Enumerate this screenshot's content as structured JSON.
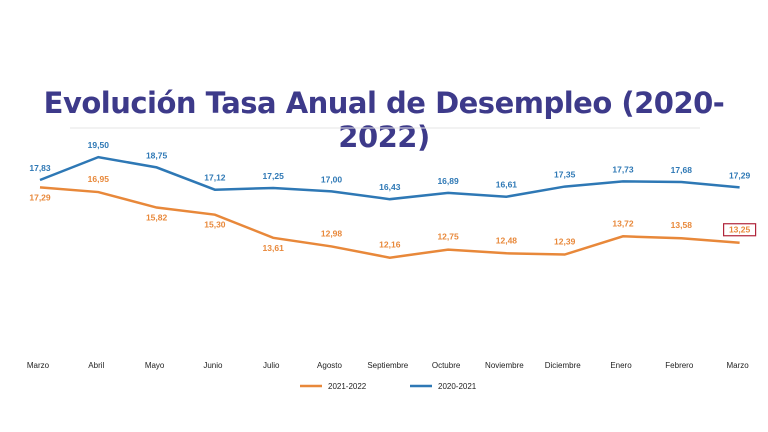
{
  "chart_data": {
    "type": "line",
    "title": "Evolución Tasa Anual de Desempleo (2020-2022)",
    "categories": [
      "Marzo",
      "Abril",
      "Mayo",
      "Junio",
      "Julio",
      "Agosto",
      "Septiembre",
      "Octubre",
      "Noviembre",
      "Diciembre",
      "Enero",
      "Febrero",
      "Marzo"
    ],
    "series": [
      {
        "name": "2021-2022",
        "color": "#e8883a",
        "values": [
          17.29,
          16.95,
          15.82,
          15.3,
          13.61,
          12.98,
          12.16,
          12.75,
          12.48,
          12.39,
          13.72,
          13.58,
          13.25
        ],
        "labels": [
          "17,29",
          "16,95",
          "15,82",
          "15,30",
          "13,61",
          "12,98",
          "12,16",
          "12,75",
          "12,48",
          "12,39",
          "13,72",
          "13,58",
          "13,25"
        ]
      },
      {
        "name": "2020-2021",
        "color": "#2e78b5",
        "values": [
          17.83,
          19.5,
          18.75,
          17.12,
          17.25,
          17.0,
          16.43,
          16.89,
          16.61,
          17.35,
          17.73,
          17.68,
          17.29
        ],
        "labels": [
          "17,83",
          "19,50",
          "18,75",
          "17,12",
          "17,25",
          "17,00",
          "16,43",
          "16,89",
          "16,61",
          "17,35",
          "17,73",
          "17,68",
          "17,29"
        ]
      }
    ],
    "highlighted_label": "13,25",
    "highlight_color": "#b0243a",
    "legend_position": "bottom",
    "grid": false
  }
}
